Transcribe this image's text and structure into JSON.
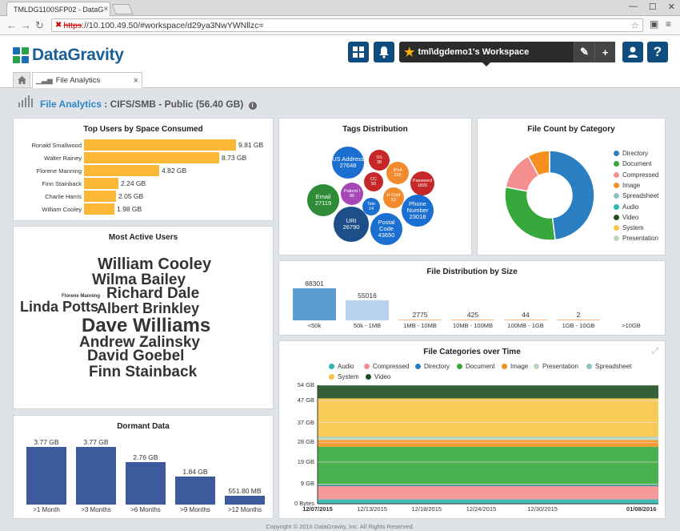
{
  "browser": {
    "tab_title": "TMLDG1100SFP02 - DataG",
    "tab_close": "×",
    "url_proto": "https",
    "url_rest": "://10.100.49.50/#workspace/d29ya3NwYWNllzc=",
    "win_min": "—",
    "win_max": "☐",
    "win_close": "✕"
  },
  "header": {
    "logo_text": "DataGravity",
    "workspace_label": "tml\\dgdemo1's Workspace"
  },
  "tabs": {
    "file_tab": "File Analytics",
    "file_tab_close": "×"
  },
  "page": {
    "title_link": "File Analytics",
    "title_rest": " : CIFS/SMB - Public (56.40 GB)",
    "info_icon": "i"
  },
  "top_users": {
    "title": "Top Users by Space Consumed",
    "rows": [
      {
        "name": "Ronald Smallwood",
        "value_gb": 9.81,
        "label": "9.81 GB"
      },
      {
        "name": "Walter Rainey",
        "value_gb": 8.73,
        "label": "8.73 GB"
      },
      {
        "name": "Florene Manning",
        "value_gb": 4.82,
        "label": "4.82 GB"
      },
      {
        "name": "Finn Stainback",
        "value_gb": 2.24,
        "label": "2.24 GB"
      },
      {
        "name": "Charlie Harris",
        "value_gb": 2.05,
        "label": "2.05 GB"
      },
      {
        "name": "William Cooley",
        "value_gb": 1.98,
        "label": "1.98 GB"
      }
    ]
  },
  "active_users": {
    "title": "Most Active Users",
    "words": [
      {
        "text": "William Cooley",
        "color": "#8e59c6"
      },
      {
        "text": "Wilma Bailey",
        "color": "#a8d86e"
      },
      {
        "text": "Richard Dale",
        "color": "#f6a94e"
      },
      {
        "text": "Florene Manning",
        "color": "#c49bd8"
      },
      {
        "text": "Linda Potts",
        "color": "#f08d8d"
      },
      {
        "text": "Albert Brinkley",
        "color": "#f08020"
      },
      {
        "text": "Dave Williams",
        "color": "#2a72b8"
      },
      {
        "text": "Andrew Zalinsky",
        "color": "#a6c3e8"
      },
      {
        "text": "David Goebel",
        "color": "#2a9a3a"
      },
      {
        "text": "Finn Stainback",
        "color": "#c81f1f"
      }
    ]
  },
  "dormant": {
    "title": "Dormant Data",
    "bars": [
      {
        "label": ">1 Month",
        "value_gb": 3.77,
        "text": "3.77 GB"
      },
      {
        "label": ">3 Months",
        "value_gb": 3.77,
        "text": "3.77 GB"
      },
      {
        "label": ">6 Months",
        "value_gb": 2.76,
        "text": "2.76 GB"
      },
      {
        "label": ">9 Months",
        "value_gb": 1.84,
        "text": "1.84 GB"
      },
      {
        "label": ">12 Months",
        "value_gb": 0.5518,
        "text": "551.80 MB"
      }
    ]
  },
  "tags": {
    "title": "Tags Distribution",
    "bubbles": [
      {
        "name": "US Address",
        "count": "27648",
        "color": "#1b6fd0"
      },
      {
        "name": "SS",
        "count": "38",
        "color": "#c62828"
      },
      {
        "name": "IPv4",
        "count": "202",
        "color": "#f18b2d"
      },
      {
        "name": "Password",
        "count": "1826",
        "color": "#c62828"
      },
      {
        "name": "CC",
        "count": "50",
        "color": "#c62828"
      },
      {
        "name": "Email",
        "count": "27119",
        "color": "#2e8b36"
      },
      {
        "name": "Patient I",
        "count": "86",
        "color": "#a548b5"
      },
      {
        "name": "H Conf",
        "count": "53",
        "color": "#f18b2d"
      },
      {
        "name": "Tele",
        "count": "14",
        "color": "#1b6fd0"
      },
      {
        "name": "Phone Number",
        "count": "23018",
        "color": "#1b6fd0"
      },
      {
        "name": "URI",
        "count": "26790",
        "color": "#1c4f87"
      },
      {
        "name": "Postal Code",
        "count": "43650",
        "color": "#1b6fd0"
      }
    ]
  },
  "file_count": {
    "title": "File Count by Category",
    "slices": [
      {
        "name": "Directory",
        "value": 48,
        "color": "#2a7fc2"
      },
      {
        "name": "Document",
        "value": 30,
        "color": "#36a83c"
      },
      {
        "name": "Compressed",
        "value": 14,
        "color": "#f58e8e"
      },
      {
        "name": "Image",
        "value": 8,
        "color": "#f5901e"
      },
      {
        "name": "Spreadsheet",
        "value": 0,
        "color": "#8fc1c4"
      },
      {
        "name": "Audio",
        "value": 0,
        "color": "#2ab7b0"
      },
      {
        "name": "Video",
        "value": 0,
        "color": "#1f4f24"
      },
      {
        "name": "System",
        "value": 0,
        "color": "#f6c545"
      },
      {
        "name": "Presentation",
        "value": 0,
        "color": "#bdd7bd"
      }
    ]
  },
  "size_dist": {
    "title": "File Distribution by Size",
    "bars": [
      {
        "label": "<50k",
        "value": 88301,
        "text": "88301",
        "color": "#5b9bd1"
      },
      {
        "label": "50k - 1MB",
        "value": 55016,
        "text": "55016",
        "color": "#b9d3ef"
      },
      {
        "label": "1MB - 10MB",
        "value": 2775,
        "text": "2775",
        "color": "#f8b98a"
      },
      {
        "label": "10MB - 100MB",
        "value": 425,
        "text": "425",
        "color": "#f8b98a"
      },
      {
        "label": "100MB - 1GB",
        "value": 44,
        "text": "44",
        "color": "#f8b98a"
      },
      {
        "label": "1GB - 10GB",
        "value": 2,
        "text": "2",
        "color": "#f8b98a"
      },
      {
        "label": ">10GB",
        "value": 0,
        "text": "",
        "color": "#f8b98a"
      }
    ]
  },
  "categories_time": {
    "title": "File Categories over Time",
    "expand_icon": "⤢",
    "legend": [
      {
        "name": "Audio",
        "color": "#2ab7b0"
      },
      {
        "name": "Compressed",
        "color": "#f58e8e"
      },
      {
        "name": "Directory",
        "color": "#2a7fc2"
      },
      {
        "name": "Document",
        "color": "#36a83c"
      },
      {
        "name": "Image",
        "color": "#f5901e"
      },
      {
        "name": "Presentation",
        "color": "#bdd7bd"
      },
      {
        "name": "Spreadsheet",
        "color": "#8fc1c4"
      },
      {
        "name": "System",
        "color": "#f6c545"
      },
      {
        "name": "Video",
        "color": "#1f4f24"
      }
    ],
    "y_ticks": [
      "0 Bytes",
      "9 GB",
      "19 GB",
      "28 GB",
      "37 GB",
      "47 GB",
      "54 GB"
    ],
    "x_ticks": [
      "12/07/2015",
      "12/13/2015",
      "12/18/2015",
      "12/24/2015",
      "12/30/2015",
      "01/08/2016"
    ],
    "stack_gb": [
      {
        "name": "Audio",
        "value": 2.0
      },
      {
        "name": "Compressed",
        "value": 6.0
      },
      {
        "name": "Directory",
        "value": 0.5
      },
      {
        "name": "Document",
        "value": 17.5
      },
      {
        "name": "Image",
        "value": 3.0
      },
      {
        "name": "Presentation",
        "value": 1.0
      },
      {
        "name": "Spreadsheet",
        "value": 0.5
      },
      {
        "name": "System",
        "value": 17.5
      },
      {
        "name": "Video",
        "value": 6.0
      }
    ]
  },
  "footer": {
    "text": "Copyright © 2016 DataGravity, Inc. All Rights Reserved."
  }
}
